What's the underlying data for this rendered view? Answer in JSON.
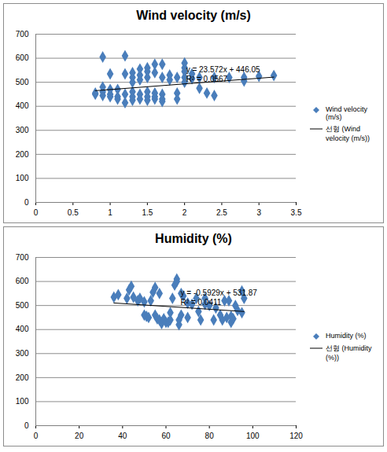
{
  "chart_data": [
    {
      "type": "scatter",
      "title": "Wind velocity (m/s)",
      "xlim": [
        0,
        3.5
      ],
      "xticks": [
        0,
        0.5,
        1,
        1.5,
        2,
        2.5,
        3,
        3.5
      ],
      "ylim": [
        0,
        700
      ],
      "yticks": [
        0,
        100,
        200,
        300,
        400,
        500,
        600,
        700
      ],
      "grid": "y",
      "legend": "right",
      "annotations": [
        "y = 23.572x + 446.05",
        "R² = 0.0567"
      ],
      "series": [
        {
          "name": "Wind velocity (m/s)",
          "type": "scatter",
          "color": "#4a7ebb",
          "marker": "diamond",
          "x": [
            0.8,
            0.8,
            0.9,
            0.9,
            0.9,
            0.9,
            1.0,
            1.0,
            1.0,
            1.0,
            1.1,
            1.1,
            1.1,
            1.2,
            1.2,
            1.2,
            1.2,
            1.3,
            1.3,
            1.3,
            1.3,
            1.3,
            1.3,
            1.4,
            1.4,
            1.4,
            1.4,
            1.4,
            1.5,
            1.5,
            1.5,
            1.5,
            1.5,
            1.5,
            1.6,
            1.6,
            1.6,
            1.6,
            1.6,
            1.7,
            1.7,
            1.7,
            1.7,
            1.7,
            1.8,
            1.8,
            1.9,
            1.9,
            1.9,
            2.0,
            2.0,
            2.0,
            2.0,
            2.0,
            2.1,
            2.1,
            2.2,
            2.2,
            2.3,
            2.4,
            2.4,
            2.6,
            2.8,
            2.8,
            3.0,
            3.2
          ],
          "values": [
            450,
            455,
            605,
            480,
            460,
            445,
            535,
            470,
            450,
            440,
            470,
            440,
            430,
            610,
            535,
            450,
            415,
            540,
            520,
            500,
            460,
            440,
            425,
            555,
            530,
            510,
            450,
            430,
            560,
            545,
            520,
            460,
            440,
            425,
            575,
            540,
            455,
            440,
            430,
            575,
            520,
            450,
            430,
            420,
            530,
            510,
            455,
            430,
            520,
            580,
            560,
            545,
            520,
            500,
            535,
            515,
            520,
            475,
            455,
            520,
            445,
            520,
            505,
            520,
            525,
            528
          ]
        },
        {
          "name": "선형 (Wind velocity (m/s))",
          "type": "line",
          "color": "#000000",
          "line_style": "solid",
          "x": [
            0.8,
            3.2
          ],
          "values": [
            464.91,
            521.48
          ]
        }
      ]
    },
    {
      "type": "scatter",
      "title": "Humidity (%)",
      "xlim": [
        0,
        120
      ],
      "xticks": [
        0,
        20,
        40,
        60,
        80,
        100,
        120
      ],
      "ylim": [
        0,
        700
      ],
      "yticks": [
        0,
        100,
        200,
        300,
        400,
        500,
        600,
        700
      ],
      "grid": "y",
      "legend": "right",
      "annotations": [
        "y = -0.5929x + 531.87",
        "R² = 0.0411"
      ],
      "series": [
        {
          "name": "Humidity (%)",
          "type": "scatter",
          "color": "#4a7ebb",
          "marker": "diamond",
          "x": [
            36,
            38,
            42,
            43,
            44,
            45,
            47,
            48,
            50,
            50,
            51,
            52,
            53,
            54,
            55,
            55,
            56,
            57,
            57,
            58,
            59,
            60,
            61,
            62,
            62,
            63,
            64,
            65,
            65,
            66,
            66,
            67,
            67,
            68,
            70,
            70,
            72,
            74,
            75,
            76,
            78,
            78,
            80,
            82,
            83,
            85,
            86,
            87,
            88,
            89,
            90,
            90,
            91,
            92,
            93,
            95,
            95,
            96
          ],
          "values": [
            535,
            545,
            530,
            565,
            580,
            535,
            520,
            530,
            515,
            460,
            455,
            450,
            520,
            555,
            575,
            460,
            445,
            440,
            550,
            425,
            445,
            430,
            430,
            470,
            440,
            530,
            585,
            610,
            600,
            440,
            420,
            550,
            460,
            540,
            510,
            450,
            505,
            530,
            475,
            440,
            530,
            505,
            500,
            440,
            490,
            460,
            440,
            520,
            450,
            520,
            430,
            455,
            445,
            500,
            480,
            560,
            470,
            530
          ]
        },
        {
          "name": "선형 (Humidity (%))",
          "type": "line",
          "color": "#000000",
          "line_style": "solid",
          "x": [
            36,
            96
          ],
          "values": [
            510.53,
            474.95
          ]
        }
      ]
    }
  ]
}
